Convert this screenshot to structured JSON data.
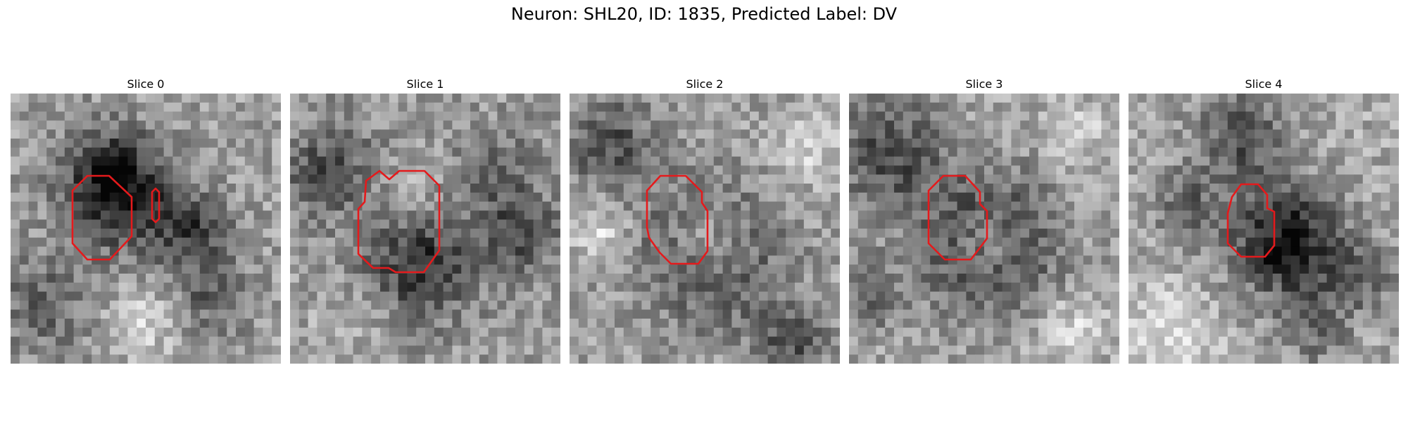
{
  "figure": {
    "title": "Neuron: SHL20, ID: 1835, Predicted Label: DV"
  },
  "slices": [
    {
      "label": "Slice 0",
      "outline_color": "#e41a1c"
    },
    {
      "label": "Slice 1",
      "outline_color": "#e41a1c"
    },
    {
      "label": "Slice 2",
      "outline_color": "#e41a1c"
    },
    {
      "label": "Slice 3",
      "outline_color": "#e41a1c"
    },
    {
      "label": "Slice 4",
      "outline_color": "#e41a1c"
    }
  ]
}
